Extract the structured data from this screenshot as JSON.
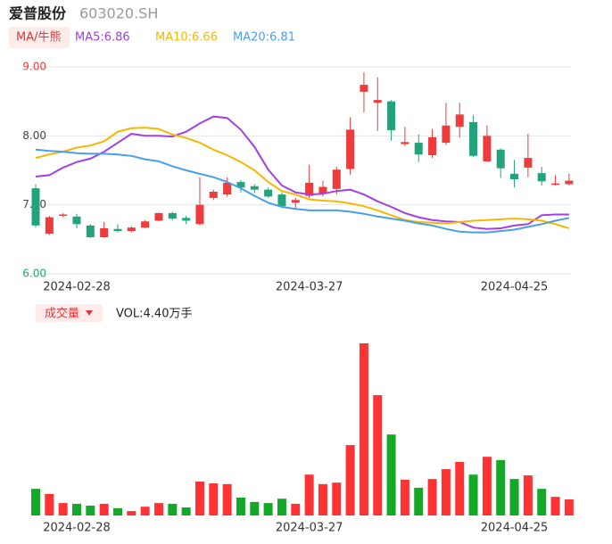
{
  "header": {
    "name": "爱普股份",
    "code": "603020.SH"
  },
  "chart_data": [
    {
      "type": "candlestick",
      "legend": {
        "toggle": "MA/牛熊",
        "items": [
          "MA5:6.86",
          "MA10:6.66",
          "MA20:6.81"
        ]
      },
      "categories": [
        null,
        null,
        null,
        "2024-02-28",
        null,
        null,
        null,
        null,
        null,
        null,
        null,
        null,
        null,
        null,
        null,
        null,
        null,
        null,
        null,
        null,
        "2024-03-27",
        null,
        null,
        null,
        null,
        null,
        null,
        null,
        null,
        null,
        null,
        null,
        null,
        null,
        null,
        "2024-04-25",
        null,
        null,
        null,
        null
      ],
      "open": [
        7.24,
        6.58,
        6.84,
        6.83,
        6.7,
        6.53,
        6.65,
        6.62,
        6.67,
        6.77,
        6.88,
        6.81,
        6.72,
        7.1,
        7.15,
        7.33,
        7.27,
        7.22,
        7.15,
        7.03,
        7.13,
        7.16,
        7.23,
        7.52,
        8.64,
        8.48,
        8.5,
        7.88,
        7.9,
        7.72,
        7.9,
        8.13,
        8.2,
        7.63,
        7.8,
        7.45,
        7.54,
        7.46,
        7.29,
        7.3
      ],
      "high": [
        7.3,
        6.84,
        6.88,
        6.87,
        6.72,
        6.75,
        6.72,
        6.69,
        6.78,
        6.89,
        6.9,
        6.84,
        7.4,
        7.22,
        7.4,
        7.36,
        7.3,
        7.25,
        7.18,
        7.1,
        7.58,
        7.35,
        7.55,
        8.27,
        8.92,
        8.85,
        8.52,
        8.13,
        8.02,
        8.1,
        8.48,
        8.48,
        8.3,
        8.15,
        7.82,
        7.65,
        8.03,
        7.55,
        7.43,
        7.45
      ],
      "low": [
        6.67,
        6.56,
        6.82,
        6.66,
        6.52,
        6.52,
        6.6,
        6.6,
        6.66,
        6.76,
        6.78,
        6.72,
        6.7,
        7.07,
        7.12,
        7.18,
        7.17,
        7.1,
        6.96,
        6.93,
        7.1,
        7.12,
        7.15,
        7.44,
        8.34,
        8.07,
        7.93,
        7.85,
        7.62,
        7.68,
        7.87,
        7.97,
        7.69,
        7.62,
        7.39,
        7.25,
        7.4,
        7.28,
        7.28,
        7.28
      ],
      "close": [
        6.7,
        6.82,
        6.86,
        6.72,
        6.53,
        6.66,
        6.62,
        6.67,
        6.76,
        6.88,
        6.8,
        6.77,
        7.0,
        7.19,
        7.32,
        7.25,
        7.22,
        7.12,
        6.98,
        7.07,
        7.32,
        7.26,
        7.51,
        8.09,
        8.74,
        8.52,
        8.08,
        7.91,
        7.73,
        7.98,
        8.15,
        8.31,
        7.71,
        8.0,
        7.53,
        7.37,
        7.68,
        7.34,
        7.31,
        7.35
      ],
      "up_color": "#ee3b3b",
      "down_color": "#23a37c",
      "series": [
        {
          "name": "MA5",
          "color": "#a040e6",
          "values": [
            7.41,
            7.43,
            7.54,
            7.62,
            7.67,
            7.77,
            7.9,
            8.03,
            8.0,
            8.0,
            7.99,
            8.06,
            8.18,
            8.28,
            8.26,
            8.09,
            7.84,
            7.51,
            7.28,
            7.18,
            7.15,
            7.16,
            7.2,
            7.22,
            7.15,
            7.05,
            6.97,
            6.88,
            6.82,
            6.78,
            6.76,
            6.75,
            6.67,
            6.65,
            6.66,
            6.7,
            6.72,
            6.85,
            6.86,
            6.86
          ]
        },
        {
          "name": "MA10",
          "color": "#f5b800",
          "values": [
            7.68,
            7.73,
            7.77,
            7.83,
            7.86,
            7.92,
            8.06,
            8.11,
            8.12,
            8.1,
            8.02,
            7.97,
            7.9,
            7.8,
            7.72,
            7.62,
            7.5,
            7.33,
            7.2,
            7.15,
            7.08,
            7.06,
            7.05,
            7.02,
            6.98,
            6.92,
            6.85,
            6.78,
            6.75,
            6.74,
            6.73,
            6.75,
            6.77,
            6.78,
            6.79,
            6.8,
            6.79,
            6.77,
            6.72,
            6.66
          ]
        },
        {
          "name": "MA20",
          "color": "#4a9fe8",
          "values": [
            7.8,
            7.78,
            7.77,
            7.75,
            7.74,
            7.74,
            7.73,
            7.71,
            7.66,
            7.63,
            7.56,
            7.5,
            7.45,
            7.4,
            7.33,
            7.24,
            7.13,
            7.03,
            6.97,
            6.94,
            6.92,
            6.92,
            6.92,
            6.9,
            6.87,
            6.83,
            6.8,
            6.77,
            6.73,
            6.7,
            6.65,
            6.61,
            6.6,
            6.6,
            6.62,
            6.64,
            6.68,
            6.72,
            6.77,
            6.81
          ]
        }
      ],
      "ylim": [
        6,
        9
      ],
      "yticks": [
        {
          "value": 6,
          "label": "6.00"
        },
        {
          "value": 7,
          "label": "7.00"
        },
        {
          "value": 8,
          "label": "8.00"
        },
        {
          "value": 9,
          "label": "9.00"
        }
      ],
      "grid": true
    },
    {
      "type": "bar",
      "title": "成交量",
      "value_text": "VOL:4.40万手",
      "categories": [
        null,
        null,
        null,
        "2024-02-28",
        null,
        null,
        null,
        null,
        null,
        null,
        null,
        null,
        null,
        null,
        null,
        null,
        null,
        null,
        null,
        null,
        "2024-03-27",
        null,
        null,
        null,
        null,
        null,
        null,
        null,
        null,
        null,
        null,
        null,
        null,
        null,
        null,
        "2024-04-25",
        null,
        null,
        null,
        null
      ],
      "values": [
        7.3,
        5.9,
        3.4,
        3.2,
        2.7,
        3.2,
        2.0,
        1.2,
        2.4,
        3.4,
        3.2,
        2.2,
        9.3,
        8.8,
        8.6,
        4.9,
        3.7,
        3.4,
        4.6,
        3.2,
        11.2,
        8.6,
        9.0,
        19.3,
        47.2,
        33.0,
        22.2,
        9.8,
        7.6,
        10.0,
        12.7,
        14.7,
        11.2,
        16.1,
        15.2,
        10.0,
        11.0,
        7.3,
        5.1,
        4.4
      ],
      "up_color": "#ff3333",
      "down_color": "#14a828"
    }
  ]
}
